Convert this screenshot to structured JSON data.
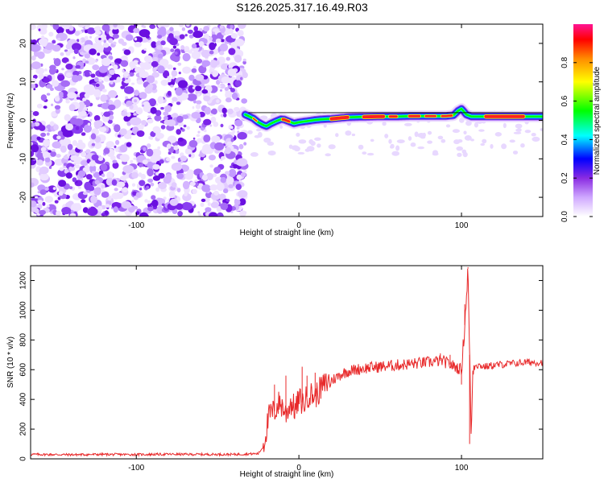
{
  "title": "S126.2025.317.16.49.R03",
  "chart_data": [
    {
      "type": "heatmap",
      "name": "spectrogram",
      "xlabel": "Height of straight line (km)",
      "ylabel": "Frequency (Hz)",
      "xlim": [
        -165,
        150
      ],
      "ylim": [
        -25,
        25
      ],
      "xticks": [
        -100,
        0,
        100
      ],
      "yticks": [
        -20,
        -10,
        0,
        10,
        20
      ],
      "noise_region_x": [
        -165,
        -33
      ],
      "signal_start_x": -33,
      "ridge": {
        "x": [
          -33,
          -28,
          -25,
          -22,
          -20,
          -17,
          -14,
          -11,
          -9,
          -6,
          -3,
          0,
          5,
          10,
          15,
          20,
          25,
          30,
          40,
          50,
          60,
          70,
          80,
          90,
          95,
          98,
          100,
          103,
          106,
          110,
          120,
          130,
          140,
          150
        ],
        "freq": [
          1.5,
          0.5,
          -0.5,
          -1.2,
          -1.5,
          -0.8,
          -0.2,
          0.3,
          0.2,
          -0.3,
          -0.8,
          -0.5,
          -0.2,
          0.1,
          0.3,
          0.4,
          0.6,
          0.8,
          0.9,
          1.0,
          1.0,
          1.1,
          1.1,
          1.1,
          1.3,
          2.5,
          3.0,
          1.5,
          1.0,
          1.0,
          1.0,
          1.0,
          1.0,
          1.0
        ]
      },
      "colorbar": {
        "label": "Normalized spectral amplitude",
        "range": [
          0.0,
          1.0
        ],
        "ticks": [
          "0.0",
          "0.2",
          "0.4",
          "0.6",
          "0.8"
        ],
        "tick_values": [
          0.0,
          0.2,
          0.4,
          0.6,
          0.8
        ],
        "colors": [
          "#ffffff",
          "#8a2be2",
          "#0000ff",
          "#00ffff",
          "#00ff00",
          "#ffff00",
          "#ff8c00",
          "#ff0000",
          "#ff1493"
        ]
      }
    },
    {
      "type": "line",
      "name": "snr",
      "xlabel": "Height of straight line (km)",
      "ylabel": "SNR (10 * v/v)",
      "xlim": [
        -165,
        150
      ],
      "ylim": [
        0,
        1300
      ],
      "xticks": [
        -100,
        0,
        100
      ],
      "yticks": [
        0,
        200,
        400,
        600,
        800,
        1000,
        1200
      ],
      "color": "#e8292a",
      "series": [
        {
          "name": "SNR",
          "x": [
            -165,
            -140,
            -120,
            -100,
            -80,
            -60,
            -40,
            -25,
            -22,
            -20,
            -18,
            -15,
            -12,
            -10,
            -8,
            -5,
            -2,
            0,
            3,
            6,
            10,
            14,
            18,
            22,
            26,
            30,
            40,
            50,
            60,
            70,
            80,
            88,
            92,
            96,
            100,
            102,
            104,
            105,
            106,
            107,
            108,
            110,
            115,
            120,
            130,
            140,
            150
          ],
          "y": [
            30,
            28,
            30,
            29,
            31,
            30,
            30,
            35,
            80,
            200,
            300,
            320,
            380,
            350,
            300,
            380,
            330,
            400,
            370,
            440,
            420,
            480,
            520,
            540,
            570,
            590,
            610,
            620,
            630,
            640,
            650,
            660,
            640,
            620,
            600,
            900,
            1280,
            700,
            150,
            600,
            640,
            630,
            620,
            630,
            640,
            650,
            650
          ],
          "spikes": [
            {
              "x": -15,
              "y": 500
            },
            {
              "x": -8,
              "y": 560
            },
            {
              "x": 2,
              "y": 620
            },
            {
              "x": 5,
              "y": 560
            },
            {
              "x": 10,
              "y": 580
            },
            {
              "x": 87,
              "y": 710
            },
            {
              "x": 93,
              "y": 700
            },
            {
              "x": 100,
              "y": 500
            },
            {
              "x": 102,
              "y": 1040
            },
            {
              "x": 104,
              "y": 1290
            },
            {
              "x": 105,
              "y": 100
            }
          ]
        }
      ]
    }
  ]
}
